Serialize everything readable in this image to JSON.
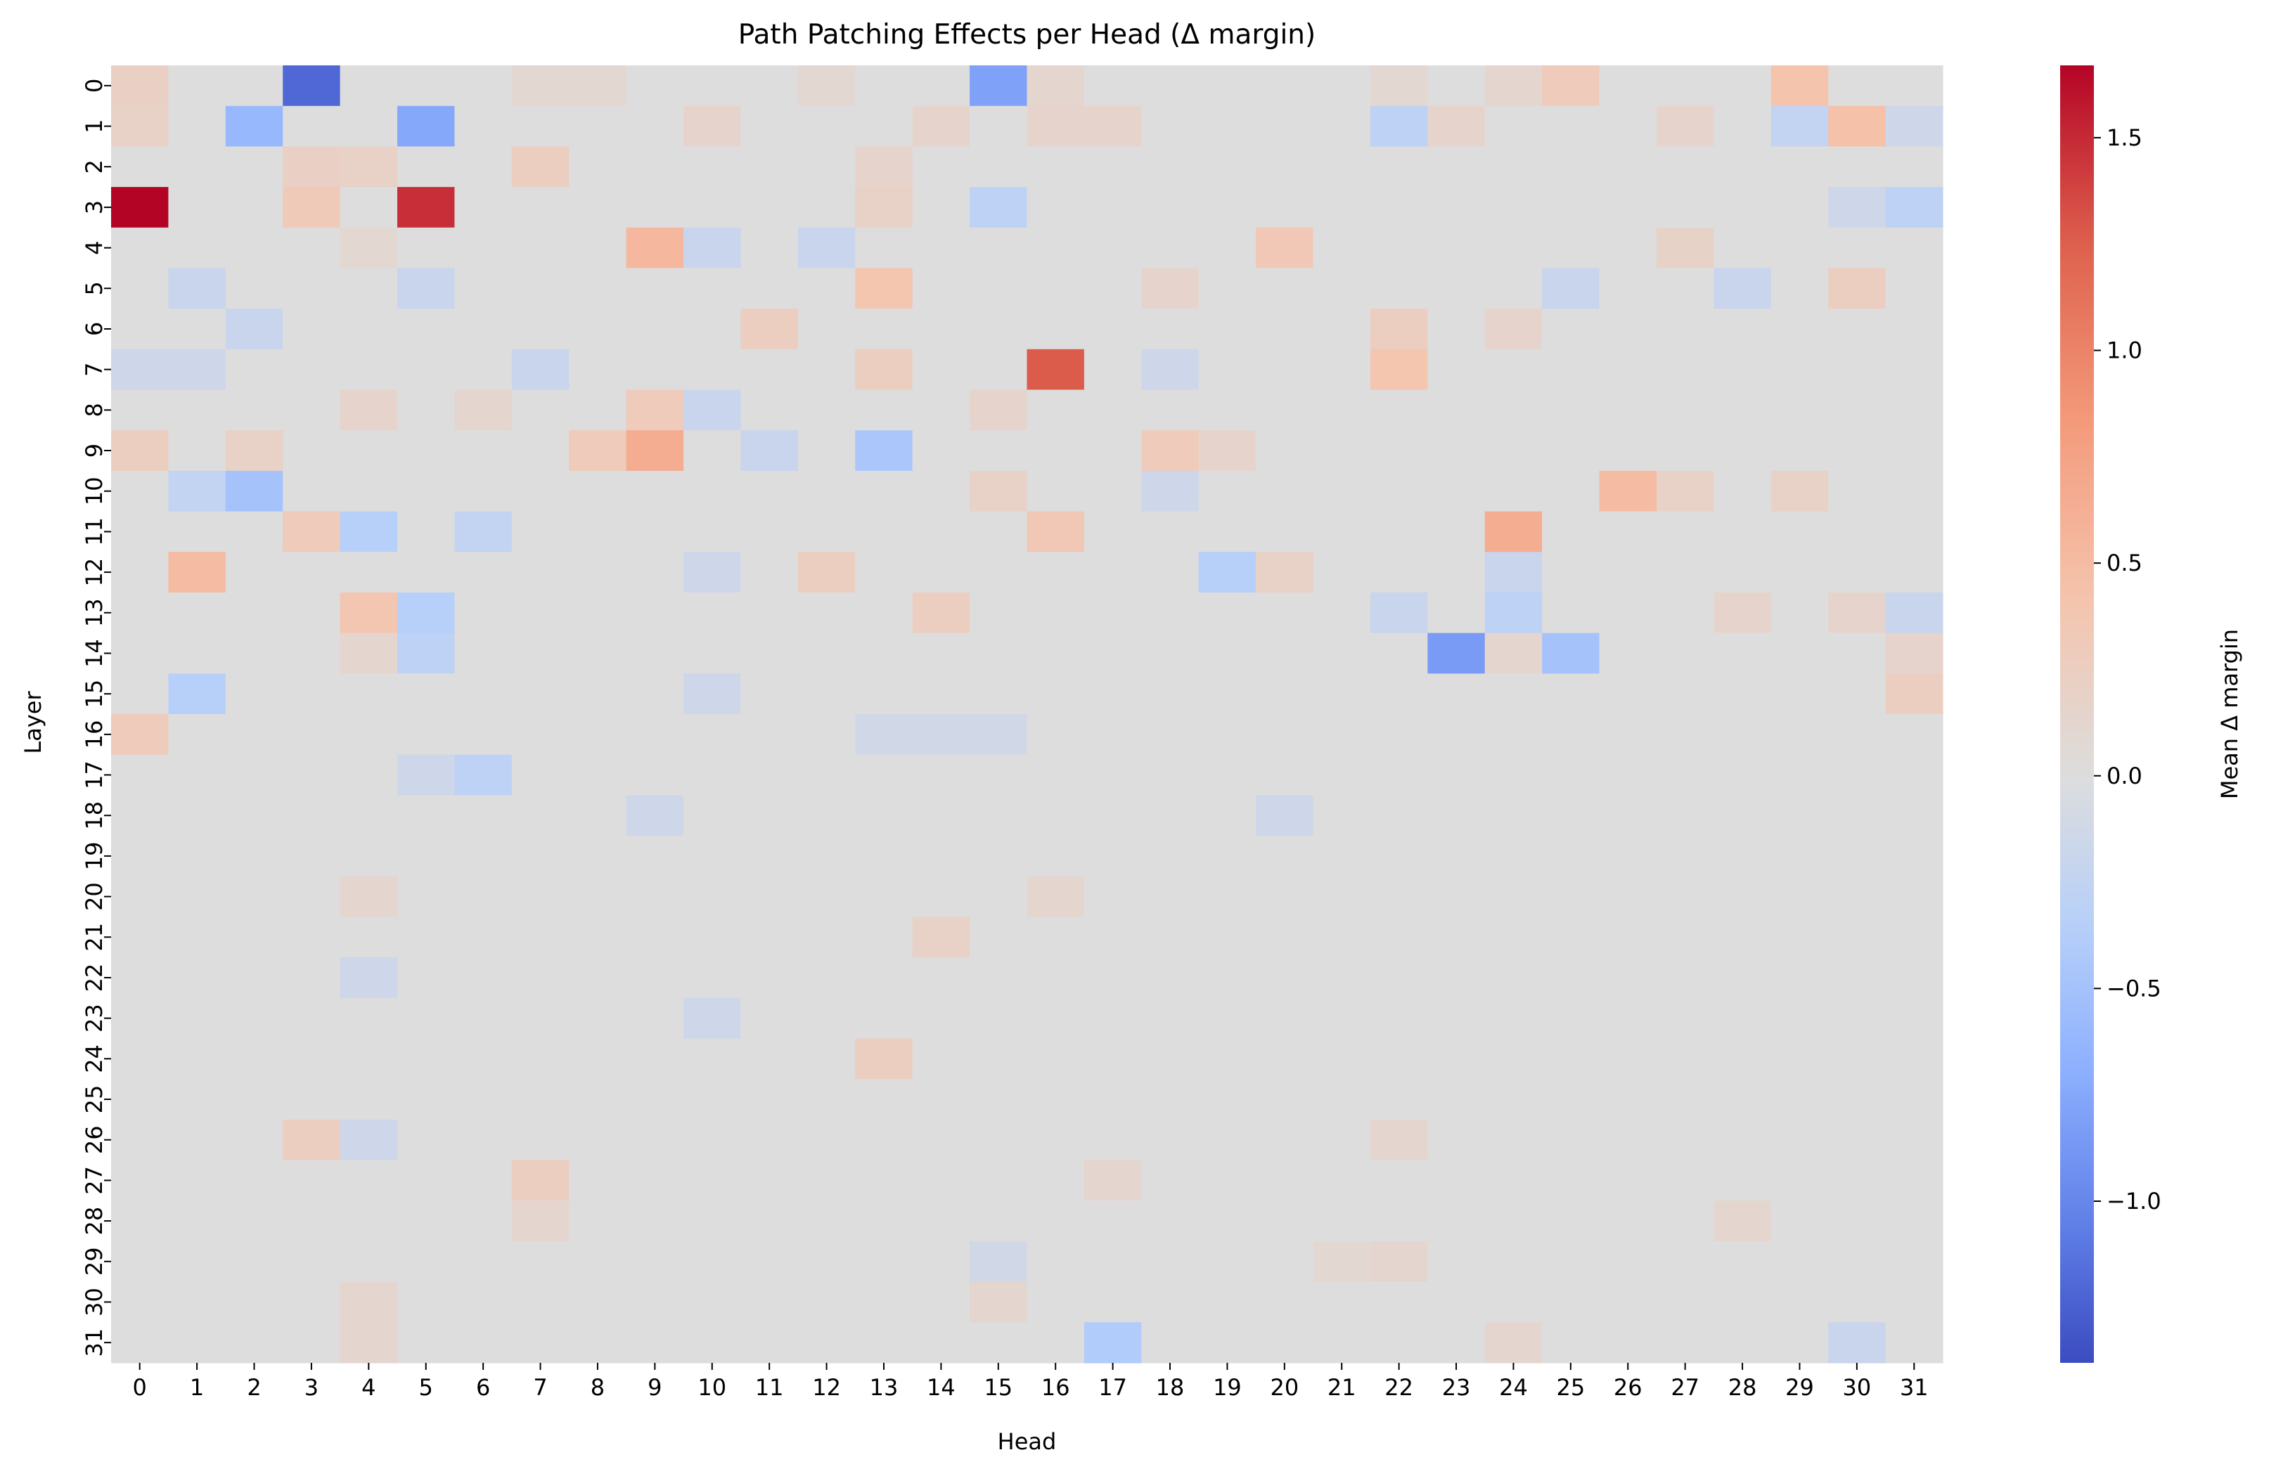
{
  "chart_data": {
    "type": "heatmap",
    "title": "Path Patching Effects per Head (Δ margin)",
    "xlabel": "Head",
    "ylabel": "Layer",
    "x_categories": [
      "0",
      "1",
      "2",
      "3",
      "4",
      "5",
      "6",
      "7",
      "8",
      "9",
      "10",
      "11",
      "12",
      "13",
      "14",
      "15",
      "16",
      "17",
      "18",
      "19",
      "20",
      "21",
      "22",
      "23",
      "24",
      "25",
      "26",
      "27",
      "28",
      "29",
      "30",
      "31"
    ],
    "y_categories": [
      "0",
      "1",
      "2",
      "3",
      "4",
      "5",
      "6",
      "7",
      "8",
      "9",
      "10",
      "11",
      "12",
      "13",
      "14",
      "15",
      "16",
      "17",
      "18",
      "19",
      "20",
      "21",
      "22",
      "23",
      "24",
      "25",
      "26",
      "27",
      "28",
      "29",
      "30",
      "31"
    ],
    "colorbar": {
      "label": "Mean Δ margin",
      "colormap": "coolwarm",
      "center": 0,
      "vmin": -1.38,
      "vmax": 1.67,
      "ticks": [
        1.5,
        1.0,
        0.5,
        0.0,
        -0.5,
        -1.0
      ],
      "tick_labels": [
        "1.5",
        "1.0",
        "0.5",
        "0.0",
        "−0.5",
        "−1.0"
      ]
    },
    "default_value": 0.0,
    "cells": [
      {
        "layer": 0,
        "head": 0,
        "value": 0.22
      },
      {
        "layer": 0,
        "head": 3,
        "value": -1.2
      },
      {
        "layer": 0,
        "head": 7,
        "value": 0.1
      },
      {
        "layer": 0,
        "head": 8,
        "value": 0.1
      },
      {
        "layer": 0,
        "head": 12,
        "value": 0.1
      },
      {
        "layer": 0,
        "head": 15,
        "value": -0.8
      },
      {
        "layer": 0,
        "head": 16,
        "value": 0.12
      },
      {
        "layer": 0,
        "head": 22,
        "value": 0.1
      },
      {
        "layer": 0,
        "head": 24,
        "value": 0.12
      },
      {
        "layer": 0,
        "head": 25,
        "value": 0.3
      },
      {
        "layer": 0,
        "head": 29,
        "value": 0.42
      },
      {
        "layer": 1,
        "head": 0,
        "value": 0.2
      },
      {
        "layer": 1,
        "head": 2,
        "value": -0.6
      },
      {
        "layer": 1,
        "head": 5,
        "value": -0.75
      },
      {
        "layer": 1,
        "head": 10,
        "value": 0.15
      },
      {
        "layer": 1,
        "head": 14,
        "value": 0.15
      },
      {
        "layer": 1,
        "head": 16,
        "value": 0.15
      },
      {
        "layer": 1,
        "head": 17,
        "value": 0.15
      },
      {
        "layer": 1,
        "head": 22,
        "value": -0.3
      },
      {
        "layer": 1,
        "head": 23,
        "value": 0.15
      },
      {
        "layer": 1,
        "head": 27,
        "value": 0.15
      },
      {
        "layer": 1,
        "head": 29,
        "value": -0.25
      },
      {
        "layer": 1,
        "head": 30,
        "value": 0.45
      },
      {
        "layer": 1,
        "head": 31,
        "value": -0.15
      },
      {
        "layer": 2,
        "head": 3,
        "value": 0.22
      },
      {
        "layer": 2,
        "head": 4,
        "value": 0.2
      },
      {
        "layer": 2,
        "head": 7,
        "value": 0.25
      },
      {
        "layer": 2,
        "head": 13,
        "value": 0.15
      },
      {
        "layer": 3,
        "head": 0,
        "value": 1.67
      },
      {
        "layer": 3,
        "head": 3,
        "value": 0.32
      },
      {
        "layer": 3,
        "head": 5,
        "value": 1.48
      },
      {
        "layer": 3,
        "head": 13,
        "value": 0.2
      },
      {
        "layer": 3,
        "head": 15,
        "value": -0.3
      },
      {
        "layer": 3,
        "head": 30,
        "value": -0.15
      },
      {
        "layer": 3,
        "head": 31,
        "value": -0.3
      },
      {
        "layer": 4,
        "head": 4,
        "value": 0.1
      },
      {
        "layer": 4,
        "head": 9,
        "value": 0.55
      },
      {
        "layer": 4,
        "head": 10,
        "value": -0.2
      },
      {
        "layer": 4,
        "head": 12,
        "value": -0.2
      },
      {
        "layer": 4,
        "head": 20,
        "value": 0.35
      },
      {
        "layer": 4,
        "head": 27,
        "value": 0.18
      },
      {
        "layer": 5,
        "head": 1,
        "value": -0.2
      },
      {
        "layer": 5,
        "head": 5,
        "value": -0.2
      },
      {
        "layer": 5,
        "head": 13,
        "value": 0.4
      },
      {
        "layer": 5,
        "head": 18,
        "value": 0.15
      },
      {
        "layer": 5,
        "head": 25,
        "value": -0.2
      },
      {
        "layer": 5,
        "head": 28,
        "value": -0.2
      },
      {
        "layer": 5,
        "head": 30,
        "value": 0.25
      },
      {
        "layer": 6,
        "head": 2,
        "value": -0.2
      },
      {
        "layer": 6,
        "head": 11,
        "value": 0.25
      },
      {
        "layer": 6,
        "head": 22,
        "value": 0.25
      },
      {
        "layer": 6,
        "head": 24,
        "value": 0.15
      },
      {
        "layer": 7,
        "head": 0,
        "value": -0.15
      },
      {
        "layer": 7,
        "head": 1,
        "value": -0.15
      },
      {
        "layer": 7,
        "head": 7,
        "value": -0.2
      },
      {
        "layer": 7,
        "head": 13,
        "value": 0.25
      },
      {
        "layer": 7,
        "head": 16,
        "value": 1.27
      },
      {
        "layer": 7,
        "head": 18,
        "value": -0.15
      },
      {
        "layer": 7,
        "head": 22,
        "value": 0.4
      },
      {
        "layer": 8,
        "head": 4,
        "value": 0.15
      },
      {
        "layer": 8,
        "head": 6,
        "value": 0.12
      },
      {
        "layer": 8,
        "head": 9,
        "value": 0.3
      },
      {
        "layer": 8,
        "head": 10,
        "value": -0.2
      },
      {
        "layer": 8,
        "head": 15,
        "value": 0.15
      },
      {
        "layer": 9,
        "head": 0,
        "value": 0.25
      },
      {
        "layer": 9,
        "head": 2,
        "value": 0.2
      },
      {
        "layer": 9,
        "head": 8,
        "value": 0.3
      },
      {
        "layer": 9,
        "head": 9,
        "value": 0.65
      },
      {
        "layer": 9,
        "head": 11,
        "value": -0.2
      },
      {
        "layer": 9,
        "head": 13,
        "value": -0.45
      },
      {
        "layer": 9,
        "head": 18,
        "value": 0.3
      },
      {
        "layer": 9,
        "head": 19,
        "value": 0.15
      },
      {
        "layer": 10,
        "head": 1,
        "value": -0.25
      },
      {
        "layer": 10,
        "head": 2,
        "value": -0.5
      },
      {
        "layer": 10,
        "head": 15,
        "value": 0.2
      },
      {
        "layer": 10,
        "head": 18,
        "value": -0.15
      },
      {
        "layer": 10,
        "head": 26,
        "value": 0.5
      },
      {
        "layer": 10,
        "head": 27,
        "value": 0.2
      },
      {
        "layer": 10,
        "head": 29,
        "value": 0.2
      },
      {
        "layer": 11,
        "head": 3,
        "value": 0.3
      },
      {
        "layer": 11,
        "head": 4,
        "value": -0.35
      },
      {
        "layer": 11,
        "head": 6,
        "value": -0.25
      },
      {
        "layer": 11,
        "head": 16,
        "value": 0.35
      },
      {
        "layer": 11,
        "head": 24,
        "value": 0.65
      },
      {
        "layer": 12,
        "head": 1,
        "value": 0.5
      },
      {
        "layer": 12,
        "head": 10,
        "value": -0.15
      },
      {
        "layer": 12,
        "head": 12,
        "value": 0.25
      },
      {
        "layer": 12,
        "head": 19,
        "value": -0.35
      },
      {
        "layer": 12,
        "head": 20,
        "value": 0.2
      },
      {
        "layer": 12,
        "head": 24,
        "value": -0.2
      },
      {
        "layer": 13,
        "head": 4,
        "value": 0.38
      },
      {
        "layer": 13,
        "head": 5,
        "value": -0.35
      },
      {
        "layer": 13,
        "head": 14,
        "value": 0.25
      },
      {
        "layer": 13,
        "head": 22,
        "value": -0.2
      },
      {
        "layer": 13,
        "head": 24,
        "value": -0.3
      },
      {
        "layer": 13,
        "head": 28,
        "value": 0.15
      },
      {
        "layer": 13,
        "head": 30,
        "value": 0.15
      },
      {
        "layer": 13,
        "head": 31,
        "value": -0.2
      },
      {
        "layer": 14,
        "head": 4,
        "value": 0.12
      },
      {
        "layer": 14,
        "head": 5,
        "value": -0.3
      },
      {
        "layer": 14,
        "head": 23,
        "value": -0.85
      },
      {
        "layer": 14,
        "head": 24,
        "value": 0.12
      },
      {
        "layer": 14,
        "head": 25,
        "value": -0.5
      },
      {
        "layer": 14,
        "head": 31,
        "value": 0.15
      },
      {
        "layer": 15,
        "head": 1,
        "value": -0.35
      },
      {
        "layer": 15,
        "head": 10,
        "value": -0.15
      },
      {
        "layer": 15,
        "head": 31,
        "value": 0.25
      },
      {
        "layer": 16,
        "head": 0,
        "value": 0.3
      },
      {
        "layer": 16,
        "head": 13,
        "value": -0.12
      },
      {
        "layer": 16,
        "head": 14,
        "value": -0.12
      },
      {
        "layer": 16,
        "head": 15,
        "value": -0.12
      },
      {
        "layer": 17,
        "head": 5,
        "value": -0.15
      },
      {
        "layer": 17,
        "head": 6,
        "value": -0.3
      },
      {
        "layer": 18,
        "head": 9,
        "value": -0.15
      },
      {
        "layer": 18,
        "head": 20,
        "value": -0.15
      },
      {
        "layer": 20,
        "head": 4,
        "value": 0.12
      },
      {
        "layer": 20,
        "head": 16,
        "value": 0.12
      },
      {
        "layer": 21,
        "head": 14,
        "value": 0.2
      },
      {
        "layer": 22,
        "head": 4,
        "value": -0.15
      },
      {
        "layer": 23,
        "head": 10,
        "value": -0.15
      },
      {
        "layer": 24,
        "head": 13,
        "value": 0.25
      },
      {
        "layer": 26,
        "head": 3,
        "value": 0.25
      },
      {
        "layer": 26,
        "head": 4,
        "value": -0.15
      },
      {
        "layer": 26,
        "head": 22,
        "value": 0.12
      },
      {
        "layer": 27,
        "head": 7,
        "value": 0.25
      },
      {
        "layer": 27,
        "head": 17,
        "value": 0.12
      },
      {
        "layer": 28,
        "head": 7,
        "value": 0.12
      },
      {
        "layer": 28,
        "head": 28,
        "value": 0.12
      },
      {
        "layer": 29,
        "head": 15,
        "value": -0.12
      },
      {
        "layer": 29,
        "head": 21,
        "value": 0.1
      },
      {
        "layer": 29,
        "head": 22,
        "value": 0.12
      },
      {
        "layer": 30,
        "head": 4,
        "value": 0.12
      },
      {
        "layer": 30,
        "head": 15,
        "value": 0.12
      },
      {
        "layer": 31,
        "head": 4,
        "value": 0.12
      },
      {
        "layer": 31,
        "head": 17,
        "value": -0.4
      },
      {
        "layer": 31,
        "head": 24,
        "value": 0.12
      },
      {
        "layer": 31,
        "head": 30,
        "value": -0.2
      }
    ]
  }
}
